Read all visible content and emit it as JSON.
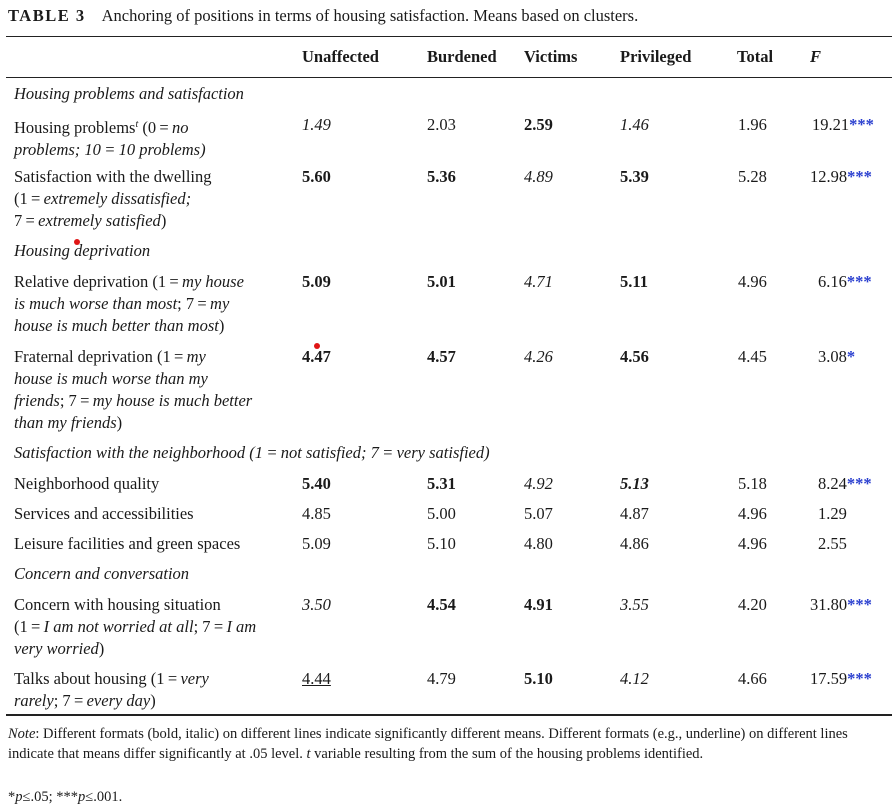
{
  "caption": {
    "number": "TABLE 3",
    "text": "Anchoring of positions in terms of housing satisfaction. Means based on clusters."
  },
  "columns": [
    "Unaffected",
    "Burdened",
    "Victims",
    "Privileged",
    "Total",
    "F"
  ],
  "sections": {
    "s1": "Housing problems and satisfaction",
    "s2": "Housing deprivation",
    "s3": "Satisfaction with the neighborhood (1 = not satisfied; 7 = very satisfied)",
    "s4": "Concern and conversation"
  },
  "rows": {
    "housing_problems": {
      "label_1a": "Housing problems",
      "label_sup": "t",
      "label_1b": " (0 = ",
      "label_1c": "no",
      "label_2": "problems; 10 = 10 problems)",
      "unaffected": "1.49",
      "burdened": "2.03",
      "victims": "2.59",
      "privileged": "1.46",
      "total": "1.96",
      "f": "19.21",
      "f_sig": "***"
    },
    "satisfaction_dwelling": {
      "label_1": "Satisfaction with the dwelling",
      "label_2a": "(1 = ",
      "label_2b": "extremely dissatisfied;",
      "label_3a": "7 = ",
      "label_3b": "extremely satisfied",
      "label_3c": ")",
      "unaffected": "5.60",
      "burdened": "5.36",
      "victims": "4.89",
      "privileged": "5.39",
      "total": "5.28",
      "f": "12.98",
      "f_sig": "***"
    },
    "relative_deprivation": {
      "label_1a": "Relative deprivation (1 = ",
      "label_1b": "my house",
      "label_2a": "is much worse than most",
      "label_2b": "; 7 = ",
      "label_2c": "my",
      "label_3a": "house is much better than most",
      "label_3b": ")",
      "unaffected": "5.09",
      "burdened": "5.01",
      "victims": "4.71",
      "privileged": "5.11",
      "total": "4.96",
      "f": "6.16",
      "f_sig": "***"
    },
    "fraternal_deprivation": {
      "label_1a": "Fraternal deprivation (1 = ",
      "label_1b": "my",
      "label_2": "house is much worse than my",
      "label_3a": "friends",
      "label_3b": "; 7 = ",
      "label_3c": "my house is much better",
      "label_4a": "than my friends",
      "label_4b": ")",
      "unaffected": "4.47",
      "burdened": "4.57",
      "victims": "4.26",
      "privileged": "4.56",
      "total": "4.45",
      "f": "3.08",
      "f_sig": "*"
    },
    "neighborhood_quality": {
      "label": "Neighborhood quality",
      "unaffected": "5.40",
      "burdened": "5.31",
      "victims": "4.92",
      "privileged": "5.13",
      "total": "5.18",
      "f": "8.24",
      "f_sig": "***"
    },
    "services": {
      "label": "Services and accessibilities",
      "unaffected": "4.85",
      "burdened": "5.00",
      "victims": "5.07",
      "privileged": "4.87",
      "total": "4.96",
      "f": "1.29"
    },
    "leisure": {
      "label": "Leisure facilities and green spaces",
      "unaffected": "5.09",
      "burdened": "5.10",
      "victims": "4.80",
      "privileged": "4.86",
      "total": "4.96",
      "f": "2.55"
    },
    "concern": {
      "label_1": "Concern with housing situation",
      "label_2a": "(1 = ",
      "label_2b": "I am not worried at all",
      "label_2c": "; 7 = ",
      "label_2d": "I am",
      "label_3a": "very worried",
      "label_3b": ")",
      "unaffected": "3.50",
      "burdened": "4.54",
      "victims": "4.91",
      "privileged": "3.55",
      "total": "4.20",
      "f": "31.80",
      "f_sig": "***"
    },
    "talks": {
      "label_1a": "Talks about housing (1 = ",
      "label_1b": "very",
      "label_2a": "rarely",
      "label_2b": "; 7 = ",
      "label_2c": "every day",
      "label_2d": ")",
      "unaffected": "4.44",
      "burdened": "4.79",
      "victims": "5.10",
      "privileged": "4.12",
      "total": "4.66",
      "f": "17.59",
      "f_sig": "***"
    }
  },
  "note": {
    "label": "Note",
    "text_1": ": Different formats (bold, italic) on different lines indicate significantly different means. Different formats (e.g., underline) on different lines indicate that means differ significantly at .05 level. ",
    "t_var": "t",
    "text_2": " variable resulting from the sum of the housing problems identified.",
    "sig_1a": "*",
    "sig_1b": "p",
    "sig_1c": "≤.05; ***",
    "sig_1d": "p",
    "sig_1e": "≤.001."
  },
  "colors": {
    "significance_stars": "#2a3fcf",
    "marker_dot": "#e01515"
  }
}
